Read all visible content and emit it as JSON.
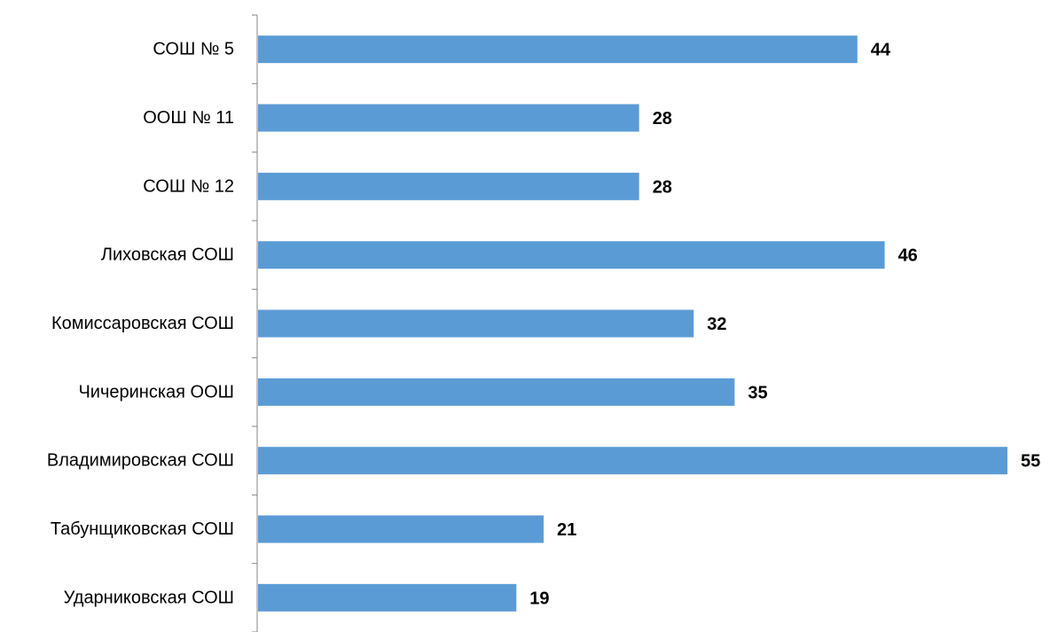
{
  "chart_data": {
    "type": "bar",
    "orientation": "horizontal",
    "categories": [
      "СОШ № 5",
      "ООШ № 11",
      "СОШ № 12",
      "Лиховская СОШ",
      "Комиссаровская СОШ",
      "Чичеринская ООШ",
      "Владимировская СОШ",
      "Табунщиковская СОШ",
      "Ударниковская СОШ"
    ],
    "values": [
      44,
      28,
      28,
      46,
      32,
      35,
      55,
      21,
      19
    ],
    "data_labels": [
      "44",
      "28",
      "28",
      "46",
      "32",
      "35",
      "55",
      "21",
      "19"
    ],
    "xlim": [
      0,
      55
    ],
    "grid": false,
    "legend": "none",
    "colors": {
      "bar": "#5b9bd5",
      "axis": "#868686",
      "text": "#000000"
    }
  }
}
